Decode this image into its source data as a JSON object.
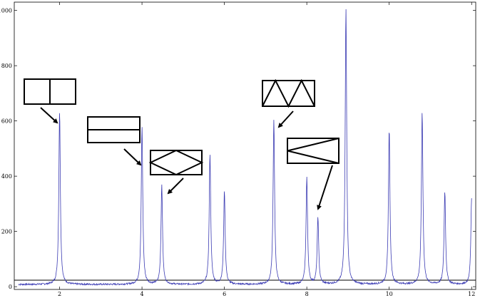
{
  "chart_data": {
    "type": "line",
    "title": "",
    "xlabel": "",
    "ylabel": "",
    "xlim": [
      0.9,
      12.1
    ],
    "ylim": [
      -10,
      1030
    ],
    "x_ticks": [
      2,
      4,
      6,
      8,
      10,
      12
    ],
    "y_ticks": [
      0,
      200,
      400,
      600,
      800,
      1000
    ],
    "x_tick_labels": [
      "2",
      "4",
      "6",
      "8",
      "10",
      "12"
    ],
    "y_tick_labels": [
      "0",
      "200",
      "400",
      "600",
      "800",
      "1000"
    ],
    "baseline": 8,
    "series": [
      {
        "color": "#3b3bb3",
        "peaks": [
          {
            "x": 2.0,
            "y": 635
          },
          {
            "x": 4.0,
            "y": 580
          },
          {
            "x": 4.48,
            "y": 370
          },
          {
            "x": 5.65,
            "y": 480
          },
          {
            "x": 6.0,
            "y": 345
          },
          {
            "x": 7.2,
            "y": 605
          },
          {
            "x": 8.0,
            "y": 395
          },
          {
            "x": 8.27,
            "y": 250
          },
          {
            "x": 8.95,
            "y": 1005
          },
          {
            "x": 10.0,
            "y": 570
          },
          {
            "x": 10.8,
            "y": 630
          },
          {
            "x": 11.35,
            "y": 345
          },
          {
            "x": 12.0,
            "y": 320
          }
        ]
      }
    ],
    "annotations": [
      {
        "shape": "square-split-vertical",
        "points_to_peak_x": 2.0
      },
      {
        "shape": "rectangle-split-horizontal",
        "points_to_peak_x": 4.0
      },
      {
        "shape": "rectangle-inscribed-rhombus",
        "points_to_peak_x": 4.48
      },
      {
        "shape": "rectangle-zigzag",
        "points_to_peak_x": 7.2
      },
      {
        "shape": "rectangle-sideways-v",
        "points_to_peak_x": 8.27
      }
    ]
  }
}
